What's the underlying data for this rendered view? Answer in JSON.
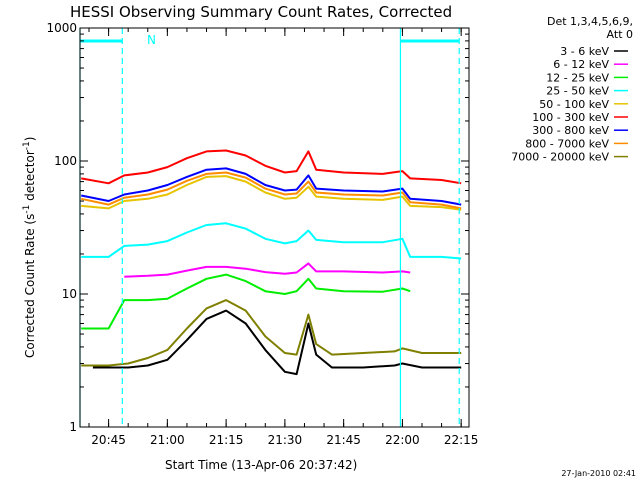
{
  "chart_data": {
    "type": "line",
    "title": "HESSI Observing Summary Count Rates, Corrected",
    "xlabel": "Start Time (13-Apr-06 20:37:42)",
    "ylabel_parts": {
      "prefix": "Corrected Count Rate (s",
      "sup1": "-1",
      "mid": " detector",
      "sup2": "-1",
      "suffix": ")"
    },
    "yscale": "log",
    "ylim": [
      1,
      1000
    ],
    "xlim": [
      "20:37:42",
      "22:17:00"
    ],
    "x_ticks": [
      "20:45",
      "21:00",
      "21:15",
      "21:30",
      "21:45",
      "22:00",
      "22:15"
    ],
    "y_ticks": [
      "1",
      "10",
      "100",
      "1000"
    ],
    "legend_header": [
      "Det 1,3,4,5,6,9,",
      "Att 0"
    ],
    "legend_placement": "right",
    "series": [
      {
        "name": "3 - 6 keV",
        "color": "#000000",
        "points": [
          [
            "20:38",
            null
          ],
          [
            "20:41",
            2.8
          ],
          [
            "20:45",
            2.8
          ],
          [
            "20:50",
            2.8
          ],
          [
            "20:55",
            2.9
          ],
          [
            "21:00",
            3.2
          ],
          [
            "21:05",
            4.5
          ],
          [
            "21:10",
            6.5
          ],
          [
            "21:15",
            7.5
          ],
          [
            "21:20",
            6.0
          ],
          [
            "21:25",
            3.8
          ],
          [
            "21:30",
            2.6
          ],
          [
            "21:33",
            2.5
          ],
          [
            "21:36",
            6.0
          ],
          [
            "21:38",
            3.5
          ],
          [
            "21:42",
            2.8
          ],
          [
            "21:50",
            2.8
          ],
          [
            "21:58",
            2.9
          ],
          [
            "22:00",
            3.0
          ],
          [
            "22:05",
            2.8
          ],
          [
            "22:15",
            2.8
          ]
        ]
      },
      {
        "name": "6 - 12 keV",
        "color": "#ff00ff",
        "points": [
          [
            "20:38",
            null
          ],
          [
            "20:49",
            13.5
          ],
          [
            "20:55",
            13.7
          ],
          [
            "21:00",
            14.0
          ],
          [
            "21:05",
            15.0
          ],
          [
            "21:10",
            16.0
          ],
          [
            "21:15",
            16.0
          ],
          [
            "21:20",
            15.5
          ],
          [
            "21:25",
            14.6
          ],
          [
            "21:30",
            14.2
          ],
          [
            "21:33",
            14.5
          ],
          [
            "21:36",
            17.0
          ],
          [
            "21:38",
            14.8
          ],
          [
            "21:45",
            14.8
          ],
          [
            "21:55",
            14.5
          ],
          [
            "22:00",
            14.8
          ],
          [
            "22:02",
            14.5
          ]
        ]
      },
      {
        "name": "12 - 25 keV",
        "color": "#00ee00",
        "points": [
          [
            "20:38",
            5.5
          ],
          [
            "20:45",
            5.5
          ],
          [
            "20:49",
            9.0
          ],
          [
            "20:55",
            9.0
          ],
          [
            "21:00",
            9.2
          ],
          [
            "21:05",
            11.0
          ],
          [
            "21:10",
            13.0
          ],
          [
            "21:15",
            14.0
          ],
          [
            "21:20",
            12.5
          ],
          [
            "21:25",
            10.5
          ],
          [
            "21:30",
            10.0
          ],
          [
            "21:33",
            10.5
          ],
          [
            "21:36",
            13.0
          ],
          [
            "21:38",
            11.0
          ],
          [
            "21:45",
            10.5
          ],
          [
            "21:55",
            10.4
          ],
          [
            "22:00",
            11.0
          ],
          [
            "22:02",
            10.5
          ]
        ]
      },
      {
        "name": "25 - 50 keV",
        "color": "#00ffff",
        "points": [
          [
            "20:38",
            19.0
          ],
          [
            "20:45",
            19.0
          ],
          [
            "20:49",
            23.0
          ],
          [
            "20:55",
            23.5
          ],
          [
            "21:00",
            25.0
          ],
          [
            "21:05",
            29.0
          ],
          [
            "21:10",
            33.0
          ],
          [
            "21:15",
            34.0
          ],
          [
            "21:20",
            31.0
          ],
          [
            "21:25",
            26.0
          ],
          [
            "21:30",
            24.0
          ],
          [
            "21:33",
            25.0
          ],
          [
            "21:36",
            30.0
          ],
          [
            "21:38",
            25.5
          ],
          [
            "21:45",
            24.5
          ],
          [
            "21:55",
            24.5
          ],
          [
            "22:00",
            26.0
          ],
          [
            "22:02",
            19.0
          ],
          [
            "22:10",
            19.0
          ],
          [
            "22:15",
            18.5
          ]
        ]
      },
      {
        "name": "50 - 100 keV",
        "color": "#e6c400",
        "points": [
          [
            "20:38",
            46.0
          ],
          [
            "20:45",
            44.0
          ],
          [
            "20:49",
            50.0
          ],
          [
            "20:55",
            52.0
          ],
          [
            "21:00",
            56.0
          ],
          [
            "21:05",
            66.0
          ],
          [
            "21:10",
            76.0
          ],
          [
            "21:15",
            77.0
          ],
          [
            "21:20",
            70.0
          ],
          [
            "21:25",
            58.0
          ],
          [
            "21:30",
            52.0
          ],
          [
            "21:33",
            53.0
          ],
          [
            "21:36",
            64.0
          ],
          [
            "21:38",
            54.0
          ],
          [
            "21:45",
            52.0
          ],
          [
            "21:55",
            51.0
          ],
          [
            "22:00",
            54.0
          ],
          [
            "22:02",
            46.0
          ],
          [
            "22:10",
            45.0
          ],
          [
            "22:15",
            43.0
          ]
        ]
      },
      {
        "name": "100 - 300 keV",
        "color": "#ff0000",
        "points": [
          [
            "20:38",
            74.0
          ],
          [
            "20:45",
            68.0
          ],
          [
            "20:49",
            78.0
          ],
          [
            "20:55",
            82.0
          ],
          [
            "21:00",
            90.0
          ],
          [
            "21:05",
            105.0
          ],
          [
            "21:10",
            118.0
          ],
          [
            "21:15",
            120.0
          ],
          [
            "21:20",
            110.0
          ],
          [
            "21:25",
            92.0
          ],
          [
            "21:30",
            82.0
          ],
          [
            "21:33",
            84.0
          ],
          [
            "21:36",
            118.0
          ],
          [
            "21:38",
            86.0
          ],
          [
            "21:45",
            82.0
          ],
          [
            "21:55",
            80.0
          ],
          [
            "22:00",
            84.0
          ],
          [
            "22:02",
            74.0
          ],
          [
            "22:10",
            72.0
          ],
          [
            "22:15",
            68.0
          ]
        ]
      },
      {
        "name": "300 - 800 keV",
        "color": "#0000ff",
        "points": [
          [
            "20:38",
            55.0
          ],
          [
            "20:45",
            50.0
          ],
          [
            "20:49",
            56.0
          ],
          [
            "20:55",
            60.0
          ],
          [
            "21:00",
            66.0
          ],
          [
            "21:05",
            76.0
          ],
          [
            "21:10",
            86.0
          ],
          [
            "21:15",
            88.0
          ],
          [
            "21:20",
            80.0
          ],
          [
            "21:25",
            66.0
          ],
          [
            "21:30",
            60.0
          ],
          [
            "21:33",
            61.0
          ],
          [
            "21:36",
            78.0
          ],
          [
            "21:38",
            62.0
          ],
          [
            "21:45",
            60.0
          ],
          [
            "21:55",
            59.0
          ],
          [
            "22:00",
            62.0
          ],
          [
            "22:02",
            52.0
          ],
          [
            "22:10",
            50.0
          ],
          [
            "22:15",
            47.0
          ]
        ]
      },
      {
        "name": "800 - 7000 keV",
        "color": "#ff8c00",
        "points": [
          [
            "20:38",
            52.0
          ],
          [
            "20:45",
            47.0
          ],
          [
            "20:49",
            53.0
          ],
          [
            "20:55",
            56.0
          ],
          [
            "21:00",
            61.0
          ],
          [
            "21:05",
            71.0
          ],
          [
            "21:10",
            80.0
          ],
          [
            "21:15",
            82.0
          ],
          [
            "21:20",
            75.0
          ],
          [
            "21:25",
            62.0
          ],
          [
            "21:30",
            56.0
          ],
          [
            "21:33",
            57.0
          ],
          [
            "21:36",
            70.0
          ],
          [
            "21:38",
            58.0
          ],
          [
            "21:45",
            56.0
          ],
          [
            "21:55",
            55.0
          ],
          [
            "22:00",
            58.0
          ],
          [
            "22:02",
            49.0
          ],
          [
            "22:10",
            47.0
          ],
          [
            "22:15",
            44.0
          ]
        ]
      },
      {
        "name": "7000 - 20000 keV",
        "color": "#808000",
        "points": [
          [
            "20:38",
            2.9
          ],
          [
            "20:45",
            2.9
          ],
          [
            "20:50",
            3.0
          ],
          [
            "20:55",
            3.3
          ],
          [
            "21:00",
            3.8
          ],
          [
            "21:05",
            5.5
          ],
          [
            "21:10",
            7.8
          ],
          [
            "21:15",
            9.0
          ],
          [
            "21:20",
            7.5
          ],
          [
            "21:25",
            4.8
          ],
          [
            "21:30",
            3.6
          ],
          [
            "21:33",
            3.5
          ],
          [
            "21:36",
            7.0
          ],
          [
            "21:38",
            4.2
          ],
          [
            "21:42",
            3.5
          ],
          [
            "21:50",
            3.6
          ],
          [
            "21:58",
            3.7
          ],
          [
            "22:00",
            3.9
          ],
          [
            "22:05",
            3.6
          ],
          [
            "22:15",
            3.6
          ]
        ]
      }
    ],
    "time_markers": {
      "color": "#00ffff",
      "night_label": "N",
      "night_bars": [
        [
          "20:37:42",
          "20:48:30"
        ],
        [
          "21:59:30",
          "22:14:30"
        ]
      ],
      "solid_lines": [
        "20:37:42",
        "21:59:30"
      ],
      "dashed_lines": [
        "20:48:30",
        "22:14:30"
      ]
    }
  },
  "timestamp": "27-Jan-2010 02:41"
}
